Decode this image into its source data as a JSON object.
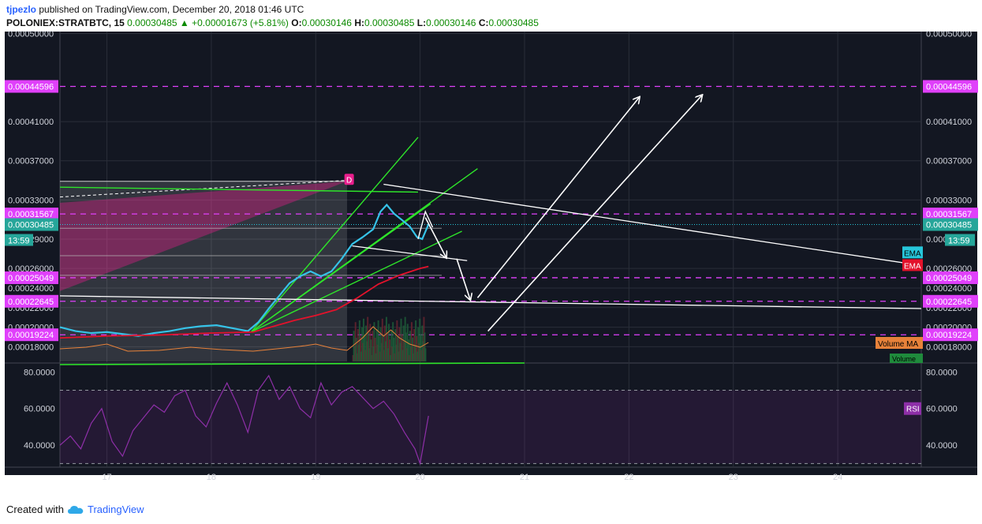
{
  "header": {
    "author": "tjpezlo",
    "published": "published on TradingView.com, December 20, 2018 01:46 UTC",
    "symbol": "POLONIEX:STRATBTC, 15",
    "last": "0.00030485",
    "change_icon": "triangle-up-icon",
    "change": "+0.00001673 (+5.81%)",
    "o_label": "O:",
    "o": "0.00030146",
    "h_label": "H:",
    "h": "0.00030485",
    "l_label": "L:",
    "l": "0.00030146",
    "c_label": "C:",
    "c": "0.00030485"
  },
  "footer": {
    "created": "Created with",
    "brand": "TradingView",
    "brand_icon": "tradingview-cloud-icon"
  },
  "colors": {
    "background": "#131722",
    "price_line": "#36c3e8",
    "ema": "#e3122b",
    "rsi": "#8e2fa8",
    "levels": "#e040fb",
    "trend": "#2ee52a",
    "arrows": "#ffffff",
    "volume_ma": "#e8823a"
  },
  "chart_data": {
    "type": "line",
    "price_axis": {
      "ylim": [
        0.000165,
        0.000502
      ],
      "ticks": [
        "0.00050000",
        "0.00041000",
        "0.00037000",
        "0.00033000",
        "0.00029000",
        "0.00026000",
        "0.00024000",
        "0.00022000",
        "0.00020000",
        "0.00018000"
      ]
    },
    "time_axis": {
      "xlim": [
        16.55,
        24.8
      ],
      "ticks": [
        {
          "label": "17",
          "x": 17
        },
        {
          "label": "18",
          "x": 18
        },
        {
          "label": "19",
          "x": 19
        },
        {
          "label": "20",
          "x": 20
        },
        {
          "label": "21",
          "x": 21
        },
        {
          "label": "22",
          "x": 22
        },
        {
          "label": "23",
          "x": 23
        },
        {
          "label": "24",
          "x": 24
        }
      ]
    },
    "levels": [
      {
        "value": 0.00044596,
        "label": "0.00044596"
      },
      {
        "value": 0.00031567,
        "label": "0.00031567"
      },
      {
        "value": 0.00025049,
        "label": "0.00025049"
      },
      {
        "value": 0.00022645,
        "label": "0.00022645"
      },
      {
        "value": 0.00019224,
        "label": "0.00019224"
      }
    ],
    "last_price": {
      "value": 0.00030485,
      "label": "0.00030485",
      "countdown": "13:59"
    },
    "series": [
      {
        "x": [
          16.55,
          16.7,
          16.85,
          17.0,
          17.15,
          17.3,
          17.45,
          17.6,
          17.75,
          17.9,
          18.05,
          18.2,
          18.35,
          18.45,
          18.55,
          18.65,
          18.75,
          18.85,
          18.95,
          19.05,
          19.15,
          19.25,
          19.35,
          19.45,
          19.55,
          19.62,
          19.68,
          19.75,
          19.82,
          19.9,
          19.97,
          20.02,
          20.08
        ],
        "y": [
          0.0002,
          0.000196,
          0.000194,
          0.000195,
          0.000193,
          0.000191,
          0.000194,
          0.000196,
          0.000199,
          0.000201,
          0.000202,
          0.000199,
          0.000196,
          0.000205,
          0.000219,
          0.000232,
          0.000245,
          0.000252,
          0.000257,
          0.000252,
          0.000257,
          0.00027,
          0.000285,
          0.000292,
          0.0003,
          0.000318,
          0.000325,
          0.000316,
          0.00031,
          0.000303,
          0.000292,
          0.00029,
          0.000305
        ]
      },
      {
        "name": "EMA",
        "x": [
          16.55,
          17.0,
          17.5,
          18.0,
          18.4,
          18.6,
          18.8,
          19.0,
          19.2,
          19.4,
          19.6,
          19.8,
          20.0,
          20.08
        ],
        "y": [
          0.000189,
          0.000191,
          0.000192,
          0.000194,
          0.000195,
          0.000201,
          0.000207,
          0.000212,
          0.000218,
          0.00023,
          0.000244,
          0.000253,
          0.00026,
          0.000262
        ]
      },
      {
        "name": "RSI",
        "x": [
          16.55,
          16.65,
          16.75,
          16.85,
          16.95,
          17.05,
          17.15,
          17.25,
          17.35,
          17.45,
          17.55,
          17.65,
          17.75,
          17.85,
          17.95,
          18.05,
          18.15,
          18.25,
          18.35,
          18.45,
          18.55,
          18.65,
          18.75,
          18.85,
          18.95,
          19.05,
          19.15,
          19.25,
          19.35,
          19.45,
          19.55,
          19.65,
          19.75,
          19.85,
          19.95,
          20.0,
          20.08
        ],
        "y": [
          40,
          45,
          38,
          52,
          60,
          42,
          34,
          48,
          55,
          62,
          58,
          67,
          70,
          56,
          50,
          63,
          74,
          62,
          47,
          70,
          78,
          65,
          72,
          60,
          55,
          74,
          62,
          69,
          72,
          66,
          60,
          64,
          57,
          47,
          38,
          30,
          56
        ]
      }
    ],
    "rsi_axis": {
      "ylim": [
        28,
        84
      ],
      "ticks": [
        "80.0000",
        "60.0000",
        "40.0000"
      ]
    },
    "indicator_labels": {
      "ema1": "EMA",
      "ema2": "EMA",
      "volume_ma": "Volume MA",
      "volume": "Volume",
      "rsi": "RSI"
    },
    "marker": "D"
  }
}
